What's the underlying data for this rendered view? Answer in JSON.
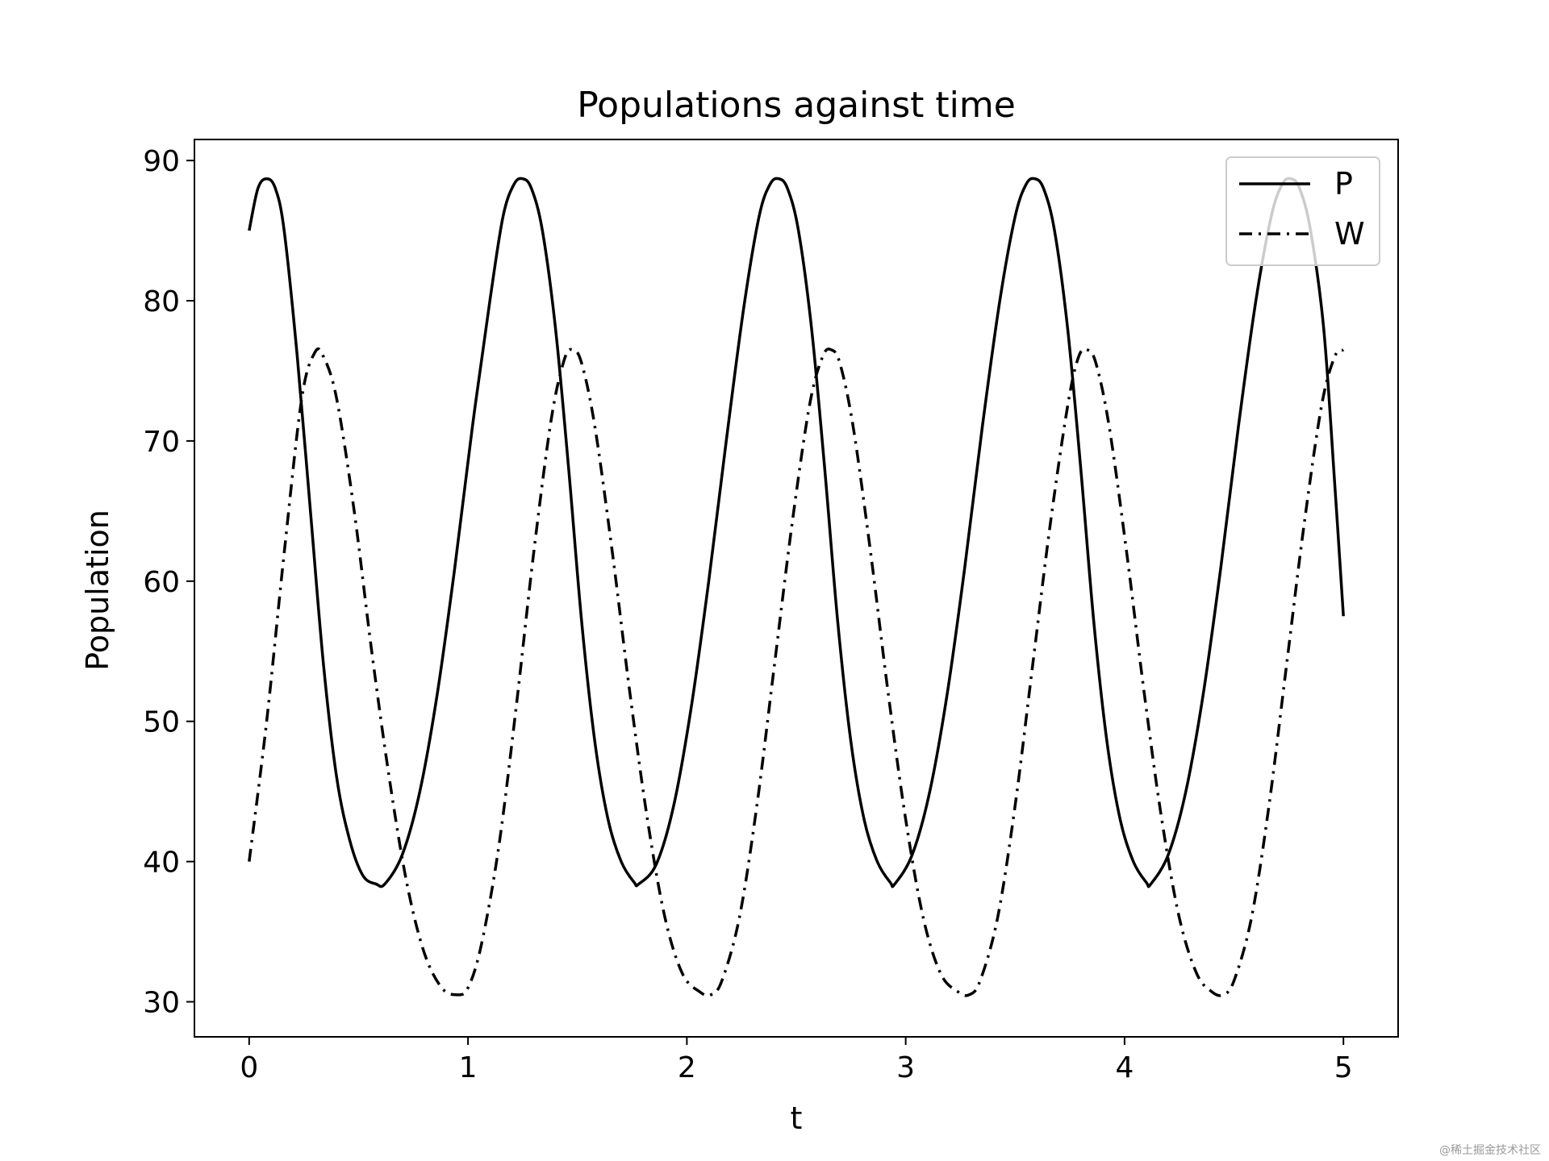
{
  "chart_data": {
    "type": "line",
    "title": "Populations against time",
    "xlabel": "t",
    "ylabel": "Population",
    "xlim": [
      -0.25,
      5.25
    ],
    "ylim": [
      27.5,
      91.5
    ],
    "xticks": [
      0,
      1,
      2,
      3,
      4,
      5
    ],
    "yticks": [
      30,
      40,
      50,
      60,
      70,
      80,
      90
    ],
    "grid": false,
    "legend_position": "top-right",
    "series": [
      {
        "name": "P",
        "style": "solid",
        "color": "#000000",
        "x": [
          0,
          0.04,
          0.08,
          0.12,
          0.16,
          0.22,
          0.28,
          0.34,
          0.4,
          0.46,
          0.52,
          0.58,
          0.62,
          0.7,
          0.78,
          0.86,
          0.94,
          1.02,
          1.1,
          1.16,
          1.21,
          1.25,
          1.29,
          1.34,
          1.4,
          1.46,
          1.52,
          1.58,
          1.64,
          1.7,
          1.76,
          1.78,
          1.86,
          1.94,
          2.02,
          2.1,
          2.18,
          2.26,
          2.33,
          2.38,
          2.42,
          2.46,
          2.51,
          2.57,
          2.63,
          2.69,
          2.75,
          2.81,
          2.87,
          2.93,
          2.95,
          3.03,
          3.11,
          3.19,
          3.27,
          3.35,
          3.43,
          3.5,
          3.55,
          3.59,
          3.63,
          3.68,
          3.74,
          3.8,
          3.86,
          3.92,
          3.98,
          4.04,
          4.1,
          4.12,
          4.2,
          4.28,
          4.36,
          4.44,
          4.52,
          4.6,
          4.67,
          4.72,
          4.76,
          4.8,
          4.85,
          4.91,
          4.96,
          5.0
        ],
        "y": [
          85,
          88,
          88.7,
          88,
          85,
          76,
          65,
          54,
          46,
          41.5,
          39,
          38.4,
          38.4,
          40.5,
          45,
          52,
          61,
          71,
          80,
          86,
          88.3,
          88.7,
          88,
          85,
          78,
          68,
          57,
          48.5,
          43,
          40,
          38.5,
          38.4,
          39.8,
          44,
          51,
          60,
          70,
          79.5,
          86,
          88.3,
          88.7,
          88,
          85,
          78,
          68,
          57,
          48.5,
          43,
          40,
          38.5,
          38.4,
          40.5,
          45,
          52,
          61,
          71,
          80,
          86,
          88.3,
          88.7,
          88,
          85,
          78,
          68,
          57,
          48.5,
          43,
          40,
          38.5,
          38.4,
          40.5,
          45,
          52,
          61,
          71,
          80,
          86,
          88.3,
          88.7,
          88,
          85,
          78,
          67,
          57.5
        ]
      },
      {
        "name": "W",
        "style": "dashdot",
        "color": "#000000",
        "x": [
          0,
          0.08,
          0.16,
          0.24,
          0.3,
          0.34,
          0.4,
          0.48,
          0.56,
          0.64,
          0.72,
          0.8,
          0.88,
          0.95,
          1.0,
          1.06,
          1.14,
          1.22,
          1.3,
          1.38,
          1.44,
          1.48,
          1.52,
          1.58,
          1.66,
          1.74,
          1.82,
          1.9,
          1.98,
          2.06,
          2.11,
          2.16,
          2.24,
          2.32,
          2.4,
          2.48,
          2.56,
          2.62,
          2.66,
          2.7,
          2.76,
          2.84,
          2.92,
          3.0,
          3.08,
          3.16,
          3.24,
          3.29,
          3.34,
          3.42,
          3.5,
          3.58,
          3.66,
          3.74,
          3.79,
          3.83,
          3.87,
          3.93,
          4.01,
          4.09,
          4.17,
          4.25,
          4.33,
          4.4,
          4.45,
          4.5,
          4.58,
          4.66,
          4.74,
          4.82,
          4.9,
          4.96,
          5.0
        ],
        "y": [
          40,
          50,
          62,
          73,
          76.3,
          76,
          73,
          65,
          55,
          46,
          38.5,
          33.5,
          31,
          30.5,
          31,
          34,
          41,
          51,
          62,
          71.5,
          75.8,
          76.5,
          75.5,
          71,
          62,
          52,
          43,
          36,
          32,
          30.7,
          30.5,
          31.5,
          36,
          44,
          54,
          64,
          72.5,
          76,
          76.5,
          75.5,
          71,
          62,
          52,
          43,
          36,
          32,
          30.7,
          30.5,
          31.5,
          36,
          44,
          54,
          64,
          72.5,
          76,
          76.5,
          75.5,
          71,
          62,
          52,
          43,
          36,
          32,
          30.7,
          30.5,
          31.5,
          36,
          44,
          54,
          64,
          72.5,
          76,
          76.5
        ]
      }
    ]
  },
  "watermark": "@稀土掘金技术社区"
}
